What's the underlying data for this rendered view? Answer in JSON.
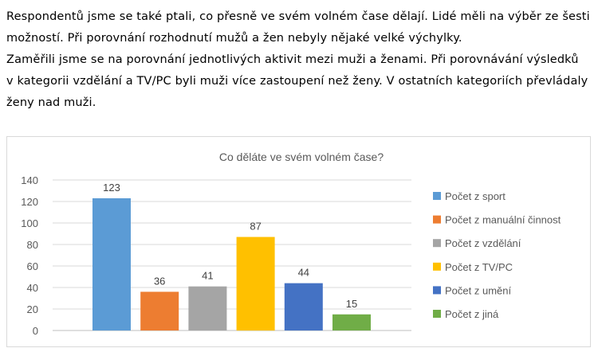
{
  "paragraphs": [
    "Respondentů jsme se také ptali, co přesně ve svém volném čase dělají. Lidé měli na výběr ze šesti",
    "možností. Při porovnání rozhodnutí mužů a žen nebyly nějaké velké výchylky.",
    "Zaměřili jsme se na porovnání jednotlivých aktivit mezi muži a ženami. Při porovnávání výsledků",
    "v kategorii vzdělání a TV/PC byli muži více zastoupení než ženy. V ostatních kategoriích převládaly",
    "ženy nad muži."
  ],
  "chart_data": {
    "type": "bar",
    "title": "Co děláte ve svém volném čase?",
    "xlabel": "",
    "ylabel": "",
    "ylim": [
      0,
      140
    ],
    "yticks": [
      0,
      20,
      40,
      60,
      80,
      100,
      120,
      140
    ],
    "grid": true,
    "legend_position": "right",
    "series": [
      {
        "name": "Počet z sport",
        "values": [
          123
        ],
        "color": "#5B9BD5"
      },
      {
        "name": "Počet z manuální činnost",
        "values": [
          36
        ],
        "color": "#ED7D31"
      },
      {
        "name": "Počet z vzdělání",
        "values": [
          41
        ],
        "color": "#A5A5A5"
      },
      {
        "name": "Počet z TV/PC",
        "values": [
          87
        ],
        "color": "#FFC000"
      },
      {
        "name": "Počet z umění",
        "values": [
          44
        ],
        "color": "#4472C4"
      },
      {
        "name": "Počet z jiná",
        "values": [
          15
        ],
        "color": "#70AD47"
      }
    ]
  }
}
